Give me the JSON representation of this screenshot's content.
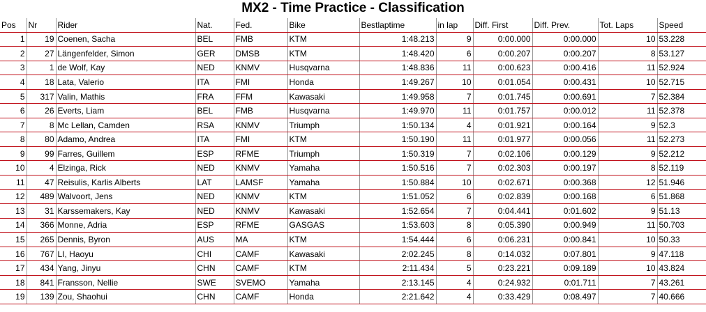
{
  "title": "MX2 - Time Practice - Classification",
  "columns": [
    "Pos",
    "Nr",
    "Rider",
    "Nat.",
    "Fed.",
    "Bike",
    "Bestlaptime",
    "in lap",
    "Diff. First",
    "Diff. Prev.",
    "Tot. Laps",
    "Speed"
  ],
  "rows": [
    [
      "1",
      "19",
      "Coenen, Sacha",
      "BEL",
      "FMB",
      "KTM",
      "1:48.213",
      "9",
      "0:00.000",
      "0:00.000",
      "10",
      "53.228"
    ],
    [
      "2",
      "27",
      "Längenfelder, Simon",
      "GER",
      "DMSB",
      "KTM",
      "1:48.420",
      "6",
      "0:00.207",
      "0:00.207",
      "8",
      "53.127"
    ],
    [
      "3",
      "1",
      "de Wolf, Kay",
      "NED",
      "KNMV",
      "Husqvarna",
      "1:48.836",
      "11",
      "0:00.623",
      "0:00.416",
      "11",
      "52.924"
    ],
    [
      "4",
      "18",
      "Lata, Valerio",
      "ITA",
      "FMI",
      "Honda",
      "1:49.267",
      "10",
      "0:01.054",
      "0:00.431",
      "10",
      "52.715"
    ],
    [
      "5",
      "317",
      "Valin, Mathis",
      "FRA",
      "FFM",
      "Kawasaki",
      "1:49.958",
      "7",
      "0:01.745",
      "0:00.691",
      "7",
      "52.384"
    ],
    [
      "6",
      "26",
      "Everts, Liam",
      "BEL",
      "FMB",
      "Husqvarna",
      "1:49.970",
      "11",
      "0:01.757",
      "0:00.012",
      "11",
      "52.378"
    ],
    [
      "7",
      "8",
      "Mc Lellan, Camden",
      "RSA",
      "KNMV",
      "Triumph",
      "1:50.134",
      "4",
      "0:01.921",
      "0:00.164",
      "9",
      "52.3"
    ],
    [
      "8",
      "80",
      "Adamo, Andrea",
      "ITA",
      "FMI",
      "KTM",
      "1:50.190",
      "11",
      "0:01.977",
      "0:00.056",
      "11",
      "52.273"
    ],
    [
      "9",
      "99",
      "Farres, Guillem",
      "ESP",
      "RFME",
      "Triumph",
      "1:50.319",
      "7",
      "0:02.106",
      "0:00.129",
      "9",
      "52.212"
    ],
    [
      "10",
      "4",
      "Elzinga, Rick",
      "NED",
      "KNMV",
      "Yamaha",
      "1:50.516",
      "7",
      "0:02.303",
      "0:00.197",
      "8",
      "52.119"
    ],
    [
      "11",
      "47",
      "Reisulis, Karlis Alberts",
      "LAT",
      "LAMSF",
      "Yamaha",
      "1:50.884",
      "10",
      "0:02.671",
      "0:00.368",
      "12",
      "51.946"
    ],
    [
      "12",
      "489",
      "Walvoort, Jens",
      "NED",
      "KNMV",
      "KTM",
      "1:51.052",
      "6",
      "0:02.839",
      "0:00.168",
      "6",
      "51.868"
    ],
    [
      "13",
      "31",
      "Karssemakers, Kay",
      "NED",
      "KNMV",
      "Kawasaki",
      "1:52.654",
      "7",
      "0:04.441",
      "0:01.602",
      "9",
      "51.13"
    ],
    [
      "14",
      "366",
      "Monne, Adria",
      "ESP",
      "RFME",
      "GASGAS",
      "1:53.603",
      "8",
      "0:05.390",
      "0:00.949",
      "11",
      "50.703"
    ],
    [
      "15",
      "265",
      "Dennis, Byron",
      "AUS",
      "MA",
      "KTM",
      "1:54.444",
      "6",
      "0:06.231",
      "0:00.841",
      "10",
      "50.33"
    ],
    [
      "16",
      "767",
      "LI, Haoyu",
      "CHI",
      "CAMF",
      "Kawasaki",
      "2:02.245",
      "8",
      "0:14.032",
      "0:07.801",
      "9",
      "47.118"
    ],
    [
      "17",
      "434",
      "Yang, Jinyu",
      "CHN",
      "CAMF",
      "KTM",
      "2:11.434",
      "5",
      "0:23.221",
      "0:09.189",
      "10",
      "43.824"
    ],
    [
      "18",
      "841",
      "Fransson, Nellie",
      "SWE",
      "SVEMO",
      "Yamaha",
      "2:13.145",
      "4",
      "0:24.932",
      "0:01.711",
      "7",
      "43.261"
    ],
    [
      "19",
      "139",
      "Zou, Shaohui",
      "CHN",
      "CAMF",
      "Honda",
      "2:21.642",
      "4",
      "0:33.429",
      "0:08.497",
      "7",
      "40.666"
    ]
  ]
}
